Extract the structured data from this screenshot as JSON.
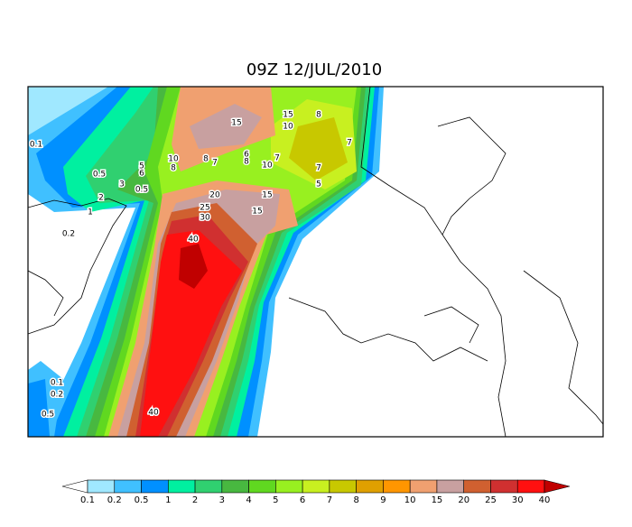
{
  "title": "09Z 12/JUL/2010",
  "colorbar": {
    "levels": [
      0.1,
      0.2,
      0.5,
      1,
      2,
      3,
      4,
      5,
      6,
      7,
      8,
      9,
      10,
      15,
      20,
      25,
      30,
      40
    ],
    "colors": [
      "#ffffff",
      "#a0e8ff",
      "#40c0ff",
      "#0090ff",
      "#00f0a0",
      "#30d070",
      "#48b840",
      "#60d820",
      "#98f020",
      "#c8f020",
      "#c8c800",
      "#e0a000",
      "#ff9600",
      "#f0a070",
      "#c8a0a0",
      "#d06030",
      "#d03030",
      "#ff1010",
      "#c00000"
    ]
  },
  "contour_labels": [
    15,
    15,
    10,
    8,
    7,
    0.1,
    10,
    8,
    8,
    7,
    6,
    8,
    10,
    7,
    7,
    5,
    0.5,
    5,
    6,
    3,
    0.5,
    2,
    1,
    20,
    15,
    15,
    25,
    30,
    40,
    0.2,
    40,
    0.1,
    0.2,
    0.5
  ]
}
